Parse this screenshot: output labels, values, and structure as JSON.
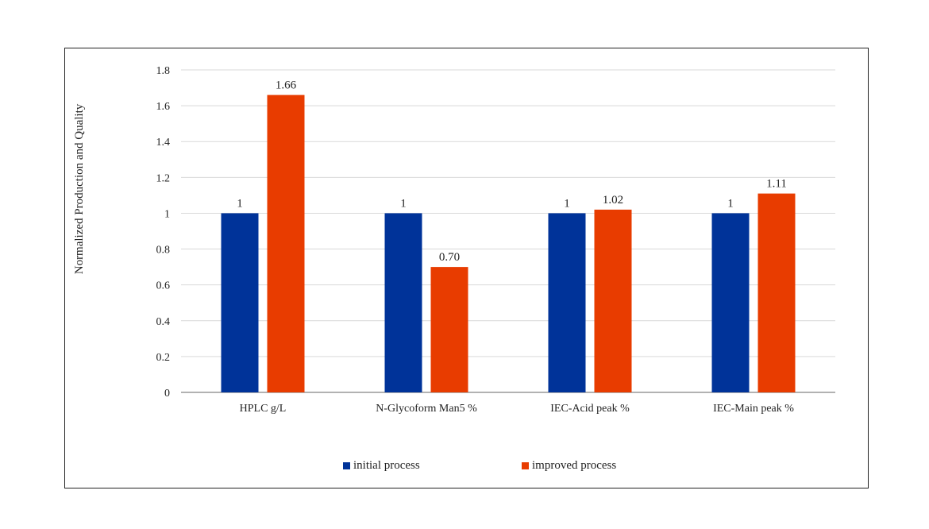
{
  "chart_data": {
    "type": "bar",
    "categories": [
      "HPLC g/L",
      "N-Glycoform Man5 %",
      "IEC-Acid peak  %",
      "IEC-Main peak %"
    ],
    "series": [
      {
        "name": "initial process",
        "values": [
          1,
          1,
          1,
          1
        ],
        "labels": [
          "1",
          "1",
          "1",
          "1"
        ],
        "color": "#003399"
      },
      {
        "name": "improved process",
        "values": [
          1.66,
          0.7,
          1.02,
          1.11
        ],
        "labels": [
          "1.66",
          "0.70",
          "1.02",
          "1.11"
        ],
        "color": "#e83c00"
      }
    ],
    "ylabel": "Normalized Production and Quality",
    "ylim": [
      0,
      1.8
    ],
    "yticks": [
      0,
      0.2,
      0.4,
      0.6,
      0.8,
      1,
      1.2,
      1.4,
      1.6,
      1.8
    ],
    "ytick_labels": [
      "0",
      "0.2",
      "0.4",
      "0.6",
      "0.8",
      "1",
      "1.2",
      "1.4",
      "1.6",
      "1.8"
    ],
    "grid": true,
    "legend_position": "bottom"
  }
}
